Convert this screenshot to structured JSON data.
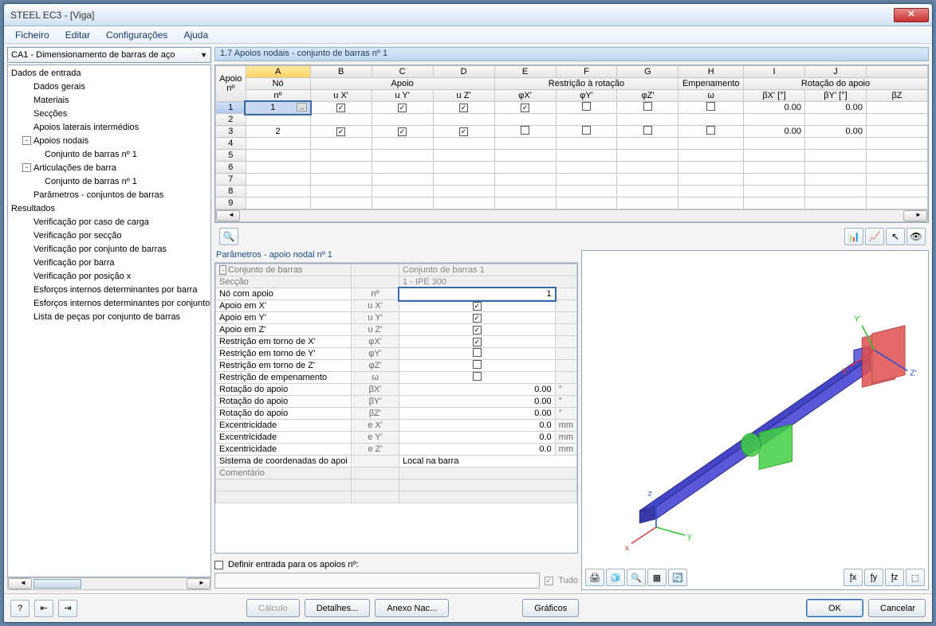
{
  "window": {
    "title": "STEEL EC3 - [Viga]"
  },
  "menu": {
    "items": [
      "Ficheiro",
      "Editar",
      "Configurações",
      "Ajuda"
    ]
  },
  "left": {
    "combo": "CA1 - Dimensionamento de barras de aço",
    "tree": [
      {
        "t": "Dados de entrada",
        "l": 1,
        "h": true
      },
      {
        "t": "Dados gerais",
        "l": 2
      },
      {
        "t": "Materiais",
        "l": 2
      },
      {
        "t": "Secções",
        "l": 2
      },
      {
        "t": "Apoios laterais intermédios",
        "l": 2
      },
      {
        "t": "Apoios nodais",
        "l": 2,
        "exp": "-"
      },
      {
        "t": "Conjunto de barras nº 1",
        "l": 3
      },
      {
        "t": "Articulações de barra",
        "l": 2,
        "exp": "-"
      },
      {
        "t": "Conjunto de barras nº 1",
        "l": 3
      },
      {
        "t": "Parâmetros - conjuntos de barras",
        "l": 2
      },
      {
        "t": "Resultados",
        "l": 1,
        "h": true
      },
      {
        "t": "Verificação por caso de carga",
        "l": 2
      },
      {
        "t": "Verificação por secção",
        "l": 2
      },
      {
        "t": "Verificação por conjunto de barras",
        "l": 2
      },
      {
        "t": "Verificação por barra",
        "l": 2
      },
      {
        "t": "Verificação por posição x",
        "l": 2
      },
      {
        "t": "Esforços internos determinantes por barra",
        "l": 2
      },
      {
        "t": "Esforços internos determinantes por conjunto",
        "l": 2
      },
      {
        "t": "Lista de peças por conjunto de barras",
        "l": 2
      }
    ]
  },
  "maingrid": {
    "title": "1.7 Apoios nodais - conjunto de barras nº 1",
    "col_letters": [
      "A",
      "B",
      "C",
      "D",
      "E",
      "F",
      "G",
      "H",
      "I",
      "J",
      ""
    ],
    "group_headers": [
      {
        "label": "Nó",
        "span": 1
      },
      {
        "label": "Apoio",
        "span": 3
      },
      {
        "label": "Restrição à rotação",
        "span": 3
      },
      {
        "label": "Empenamento",
        "span": 1
      },
      {
        "label": "Rotação do apoio",
        "span": 3
      }
    ],
    "row_header_top": "Apoio",
    "row_header_bot": "nº",
    "sub_headers": [
      "nº",
      "u X'",
      "u Y'",
      "u Z'",
      "φX'",
      "φY'",
      "φZ'",
      "ω",
      "βX' [°]",
      "βY' [°]",
      "βZ"
    ],
    "rows": [
      {
        "n": "1",
        "no": "1",
        "ux": true,
        "uy": true,
        "uz": true,
        "rx": true,
        "ry": false,
        "rz": false,
        "w": false,
        "bx": "0.00",
        "by": "0.00",
        "bz": ""
      },
      {
        "n": "2",
        "no": "",
        "ux": null,
        "uy": null,
        "uz": null,
        "rx": null,
        "ry": null,
        "rz": null,
        "w": null,
        "bx": "",
        "by": "",
        "bz": ""
      },
      {
        "n": "3",
        "no": "2",
        "ux": true,
        "uy": true,
        "uz": true,
        "rx": false,
        "ry": false,
        "rz": false,
        "w": false,
        "bx": "0.00",
        "by": "0.00",
        "bz": ""
      },
      {
        "n": "4"
      },
      {
        "n": "5"
      },
      {
        "n": "6"
      },
      {
        "n": "7"
      },
      {
        "n": "8"
      },
      {
        "n": "9"
      }
    ]
  },
  "params": {
    "title": "Parâmetros - apoio nodal nº 1",
    "rows": [
      {
        "l": "Conjunto de barras",
        "s": "",
        "v": "Conjunto de barras 1",
        "ro": true,
        "span": true,
        "exp": "-"
      },
      {
        "l": "Secção",
        "s": "",
        "v": "1 - IPE 300",
        "ro": true,
        "span": true
      },
      {
        "l": "Nó com apoio",
        "s": "nº",
        "v": "1",
        "hl": true
      },
      {
        "l": "Apoio em X'",
        "s": "u X'",
        "cb": true
      },
      {
        "l": "Apoio em Y'",
        "s": "u Y'",
        "cb": true
      },
      {
        "l": "Apoio em Z'",
        "s": "u Z'",
        "cb": true
      },
      {
        "l": "Restrição em torno de X'",
        "s": "φX'",
        "cb": true
      },
      {
        "l": "Restrição em torno de Y'",
        "s": "φY'",
        "cb": false
      },
      {
        "l": "Restrição em torno de Z'",
        "s": "φZ'",
        "cb": false
      },
      {
        "l": "Restrição de empenamento",
        "s": "ω",
        "cb": false
      },
      {
        "l": "Rotação do apoio",
        "s": "βX'",
        "v": "0.00",
        "u": "°"
      },
      {
        "l": "Rotação do apoio",
        "s": "βY'",
        "v": "0.00",
        "u": "°"
      },
      {
        "l": "Rotação do apoio",
        "s": "βZ'",
        "v": "0.00",
        "u": "°"
      },
      {
        "l": "Excentricidade",
        "s": "e X'",
        "v": "0.0",
        "u": "mm"
      },
      {
        "l": "Excentricidade",
        "s": "e Y'",
        "v": "0.0",
        "u": "mm"
      },
      {
        "l": "Excentricidade",
        "s": "e Z'",
        "v": "0.0",
        "u": "mm"
      },
      {
        "l": "Sistema de coordenadas do apoi",
        "s": "",
        "v": "Local na barra",
        "span": true,
        "left": true
      },
      {
        "l": "Comentário",
        "s": "",
        "v": "",
        "span": true,
        "ro": true
      }
    ],
    "define_label": "Definir entrada para os apoios nº:",
    "tudo": "Tudo"
  },
  "viewer": {
    "beam_color": "#4545c8",
    "beam_edge": "#2a2a88",
    "support_green": "#40d040",
    "support_red": "#e05050",
    "axis": {
      "x": "#e04040",
      "y": "#30c030",
      "z": "#3050d0"
    }
  },
  "footer": {
    "calculo": "Cálculo",
    "detalhes": "Detalhes...",
    "anexo": "Anexo Nac...",
    "graficos": "Gráficos",
    "ok": "OK",
    "cancelar": "Cancelar"
  }
}
